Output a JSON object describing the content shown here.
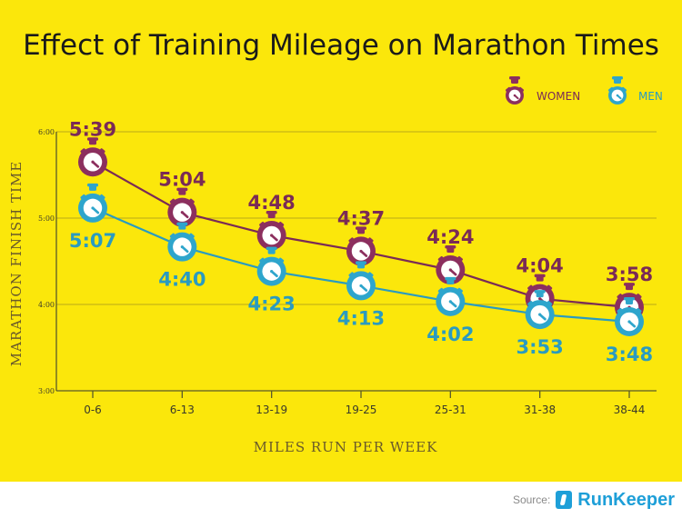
{
  "chart_data": {
    "type": "line",
    "title": "Effect of Training Mileage on Marathon Times",
    "xlabel": "MILES RUN PER WEEK",
    "ylabel": "MARATHON FINISH TIME",
    "categories": [
      "0-6",
      "6-13",
      "13-19",
      "19-25",
      "25-31",
      "31-38",
      "38-44"
    ],
    "y_ticks": [
      "6:00",
      "5:00",
      "4:00",
      "3:00"
    ],
    "ylim_minutes": [
      180,
      360
    ],
    "grid": true,
    "legend_position": "top-right",
    "series": [
      {
        "name": "WOMEN",
        "color": "#7a2a56",
        "marker_color": "#8c2f5e",
        "values_minutes": [
          339,
          304,
          288,
          277,
          264,
          244,
          238
        ],
        "labels": [
          "5:39",
          "5:04",
          "4:48",
          "4:37",
          "4:24",
          "4:04",
          "3:58"
        ]
      },
      {
        "name": "MEN",
        "color": "#2a9bc0",
        "marker_color": "#2ea5cc",
        "values_minutes": [
          307,
          280,
          263,
          253,
          242,
          233,
          228
        ],
        "labels": [
          "5:07",
          "4:40",
          "4:23",
          "4:13",
          "4:02",
          "3:53",
          "3:48"
        ]
      }
    ]
  },
  "source": {
    "label": "Source:",
    "brand": "RunKeeper"
  },
  "icons": {
    "marker": "stopwatch-icon",
    "brand": "runkeeper-logo-icon"
  }
}
